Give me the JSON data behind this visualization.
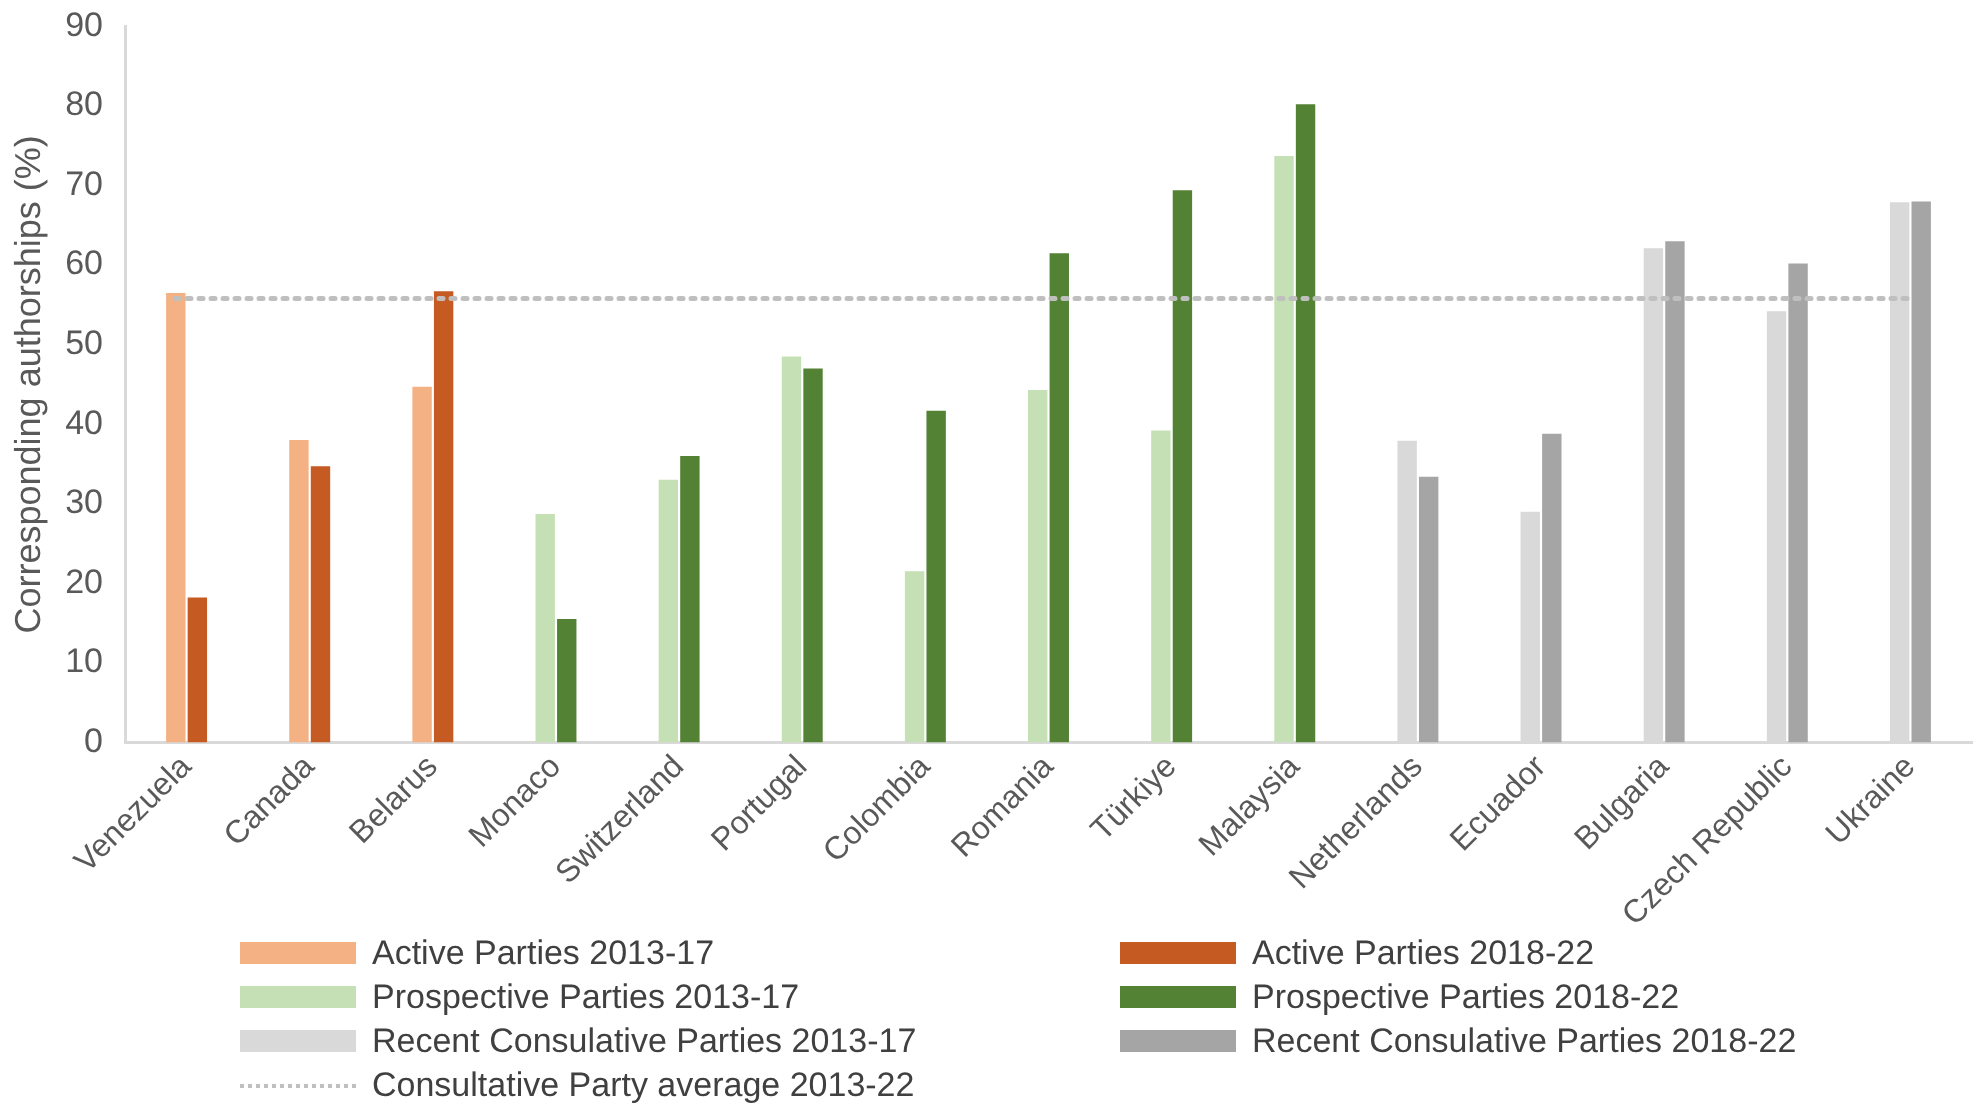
{
  "chart_data": {
    "type": "bar",
    "ylabel": "Corresponding authorships (%)",
    "categories": [
      "Venezuela",
      "Canada",
      "Belarus",
      "Monaco",
      "Switzerland",
      "Portugal",
      "Colombia",
      "Romania",
      "Türkiye",
      "Malaysia",
      "Netherlands",
      "Ecuador",
      "Bulgaria",
      "Czech Republic",
      "Ukraine"
    ],
    "series": [
      {
        "name": "Active Parties 2013-17",
        "color": "#f4b183",
        "values": [
          56.5,
          38,
          44.7,
          null,
          null,
          null,
          null,
          null,
          null,
          null,
          null,
          null,
          null,
          null,
          null
        ]
      },
      {
        "name": "Active Parties 2018-22",
        "color": "#c55a22",
        "values": [
          18.2,
          34.7,
          56.7,
          null,
          null,
          null,
          null,
          null,
          null,
          null,
          null,
          null,
          null,
          null,
          null
        ]
      },
      {
        "name": "Prospective Parties 2013-17",
        "color": "#c5e0b4",
        "values": [
          null,
          null,
          null,
          28.7,
          33,
          48.5,
          21.5,
          44.3,
          39.2,
          73.7,
          null,
          null,
          null,
          null,
          null
        ]
      },
      {
        "name": "Prospective Parties 2018-22",
        "color": "#548235",
        "values": [
          null,
          null,
          null,
          15.5,
          36,
          47,
          41.7,
          61.5,
          69.4,
          80.2,
          null,
          null,
          null,
          null,
          null
        ]
      },
      {
        "name": "Recent Consulative Parties 2013-17",
        "color": "#d9d9d9",
        "values": [
          null,
          null,
          null,
          null,
          null,
          null,
          null,
          null,
          null,
          null,
          37.9,
          29,
          62.1,
          54.2,
          67.9
        ]
      },
      {
        "name": "Recent Consulative Parties 2018-22",
        "color": "#a5a5a5",
        "values": [
          null,
          null,
          null,
          null,
          null,
          null,
          null,
          null,
          null,
          null,
          33.4,
          38.8,
          63,
          60.2,
          68
        ]
      }
    ],
    "ylim": [
      0,
      90
    ],
    "yticks": [
      0,
      10,
      20,
      30,
      40,
      50,
      60,
      70,
      80,
      90
    ],
    "grid": false,
    "legend": "bottom",
    "ref_lines": [
      {
        "axis": "y",
        "value": 55.8,
        "label": "Consultative Party average 2013-22",
        "color": "#bfbfbf",
        "line_style": "dotted"
      }
    ]
  }
}
